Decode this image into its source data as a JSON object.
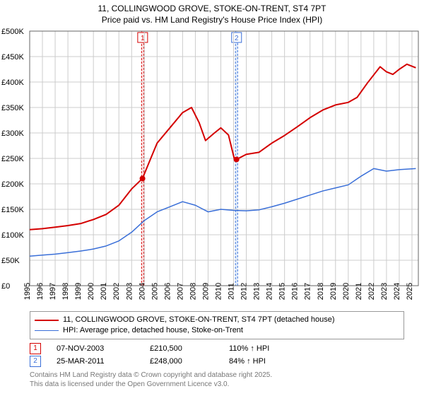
{
  "title": {
    "line1": "11, COLLINGWOOD GROVE, STOKE-ON-TRENT, ST4 7PT",
    "line2": "Price paid vs. HM Land Registry's House Price Index (HPI)"
  },
  "chart": {
    "type": "line",
    "background_color": "#ffffff",
    "grid_color": "#cccccc",
    "x_years": [
      1995,
      1996,
      1997,
      1998,
      1999,
      2000,
      2001,
      2002,
      2003,
      2004,
      2005,
      2006,
      2007,
      2008,
      2009,
      2010,
      2011,
      2012,
      2013,
      2014,
      2015,
      2016,
      2017,
      2018,
      2019,
      2020,
      2021,
      2022,
      2023,
      2024,
      2025
    ],
    "xlim": [
      1995,
      2025.5
    ],
    "ylim": [
      0,
      500000
    ],
    "ytick_step": 50000,
    "ytick_labels": [
      "£0",
      "£50K",
      "£100K",
      "£150K",
      "£200K",
      "£250K",
      "£300K",
      "£350K",
      "£400K",
      "£450K",
      "£500K"
    ],
    "label_fontsize": 11,
    "series": [
      {
        "name": "11, COLLINGWOOD GROVE, STOKE-ON-TRENT, ST4 7PT (detached house)",
        "color": "#d40000",
        "line_width": 2,
        "points": [
          [
            1995,
            110000
          ],
          [
            1996,
            112000
          ],
          [
            1997,
            115000
          ],
          [
            1998,
            118000
          ],
          [
            1999,
            122000
          ],
          [
            2000,
            130000
          ],
          [
            2001,
            140000
          ],
          [
            2002,
            158000
          ],
          [
            2003,
            190000
          ],
          [
            2003.85,
            210500
          ],
          [
            2004.5,
            250000
          ],
          [
            2005,
            280000
          ],
          [
            2006,
            310000
          ],
          [
            2007,
            340000
          ],
          [
            2007.7,
            350000
          ],
          [
            2008.3,
            320000
          ],
          [
            2008.8,
            285000
          ],
          [
            2009.5,
            300000
          ],
          [
            2010,
            310000
          ],
          [
            2010.6,
            296000
          ],
          [
            2011.1,
            245000
          ],
          [
            2011.23,
            248000
          ],
          [
            2012,
            258000
          ],
          [
            2013,
            262000
          ],
          [
            2014,
            280000
          ],
          [
            2015,
            295000
          ],
          [
            2016,
            312000
          ],
          [
            2017,
            330000
          ],
          [
            2018,
            345000
          ],
          [
            2019,
            355000
          ],
          [
            2020,
            360000
          ],
          [
            2020.7,
            370000
          ],
          [
            2021.5,
            398000
          ],
          [
            2022.5,
            430000
          ],
          [
            2023,
            420000
          ],
          [
            2023.5,
            415000
          ],
          [
            2024,
            425000
          ],
          [
            2024.6,
            435000
          ],
          [
            2025.3,
            428000
          ]
        ]
      },
      {
        "name": "HPI: Average price, detached house, Stoke-on-Trent",
        "color": "#3a6fd8",
        "line_width": 1.5,
        "points": [
          [
            1995,
            58000
          ],
          [
            1996,
            60000
          ],
          [
            1997,
            62000
          ],
          [
            1998,
            65000
          ],
          [
            1999,
            68000
          ],
          [
            2000,
            72000
          ],
          [
            2001,
            78000
          ],
          [
            2002,
            88000
          ],
          [
            2003,
            105000
          ],
          [
            2004,
            128000
          ],
          [
            2005,
            145000
          ],
          [
            2006,
            155000
          ],
          [
            2007,
            165000
          ],
          [
            2008,
            158000
          ],
          [
            2009,
            145000
          ],
          [
            2010,
            150000
          ],
          [
            2011,
            148000
          ],
          [
            2012,
            147000
          ],
          [
            2013,
            149000
          ],
          [
            2014,
            155000
          ],
          [
            2015,
            162000
          ],
          [
            2016,
            170000
          ],
          [
            2017,
            178000
          ],
          [
            2018,
            186000
          ],
          [
            2019,
            192000
          ],
          [
            2020,
            198000
          ],
          [
            2021,
            215000
          ],
          [
            2022,
            230000
          ],
          [
            2023,
            225000
          ],
          [
            2024,
            228000
          ],
          [
            2025.3,
            230000
          ]
        ]
      }
    ],
    "sale_bands": [
      {
        "start": 2003.78,
        "end": 2003.95,
        "fill": "#fde2e2",
        "border": "#d40000",
        "marker_x": 2003.85,
        "marker_y": 210500
      },
      {
        "start": 2011.15,
        "end": 2011.32,
        "fill": "#e2eefc",
        "border": "#3a6fd8",
        "marker_x": 2011.23,
        "marker_y": 248000
      }
    ],
    "sale_marker_color": "#d40000",
    "sale_marker_radius": 4
  },
  "legend": {
    "items": [
      {
        "color": "#d40000",
        "width": 2,
        "label": "11, COLLINGWOOD GROVE, STOKE-ON-TRENT, ST4 7PT (detached house)"
      },
      {
        "color": "#3a6fd8",
        "width": 1.5,
        "label": "HPI: Average price, detached house, Stoke-on-Trent"
      }
    ]
  },
  "sales": [
    {
      "n": "1",
      "color": "#d40000",
      "date": "07-NOV-2003",
      "price": "£210,500",
      "ratio": "110% ↑ HPI"
    },
    {
      "n": "2",
      "color": "#3a6fd8",
      "date": "25-MAR-2011",
      "price": "£248,000",
      "ratio": "84% ↑ HPI"
    }
  ],
  "credits": {
    "line1": "Contains HM Land Registry data © Crown copyright and database right 2025.",
    "line2": "This data is licensed under the Open Government Licence v3.0."
  }
}
